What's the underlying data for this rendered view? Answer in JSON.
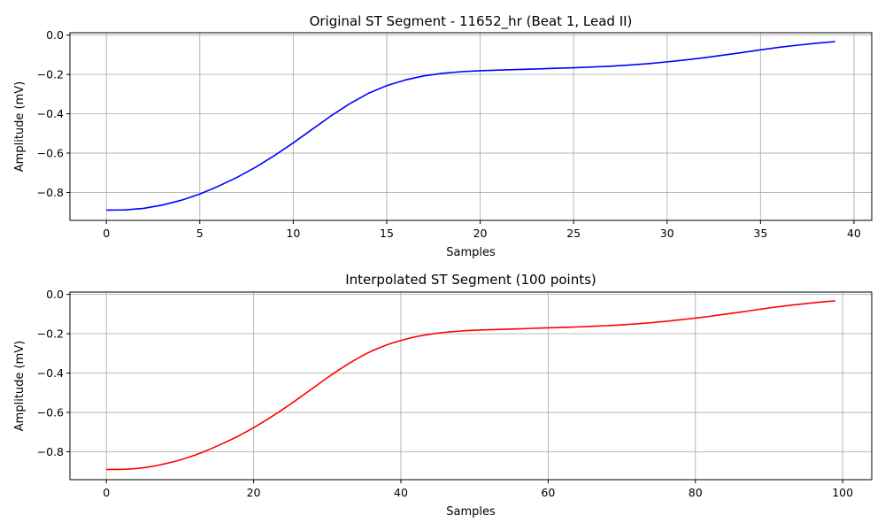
{
  "chart_data": [
    {
      "type": "line",
      "title": "Original ST Segment - 11652_hr (Beat 1, Lead II)",
      "xlabel": "Samples",
      "ylabel": "Amplitude (mV)",
      "xlim": [
        -1.95,
        40.95
      ],
      "ylim": [
        -0.942,
        0.012
      ],
      "xticks": [
        0,
        5,
        10,
        15,
        20,
        25,
        30,
        35,
        40
      ],
      "xtick_labels": [
        "0",
        "5",
        "10",
        "15",
        "20",
        "25",
        "30",
        "35",
        "40"
      ],
      "yticks": [
        0.0,
        -0.2,
        -0.4,
        -0.6,
        -0.8
      ],
      "ytick_labels": [
        "0.0",
        "−0.2",
        "−0.4",
        "−0.6",
        "−0.8"
      ],
      "grid": true,
      "color": "#0000ff",
      "series": [
        {
          "x": [
            0,
            1,
            2,
            3,
            4,
            5,
            6,
            7,
            8,
            9,
            10,
            11,
            12,
            13,
            14,
            15,
            16,
            17,
            18,
            19,
            20,
            21,
            22,
            23,
            24,
            25,
            26,
            27,
            28,
            29,
            30,
            31,
            32,
            33,
            34,
            35,
            36,
            37,
            38,
            39
          ],
          "values": [
            -0.89,
            -0.889,
            -0.881,
            -0.864,
            -0.84,
            -0.808,
            -0.768,
            -0.723,
            -0.671,
            -0.612,
            -0.548,
            -0.48,
            -0.412,
            -0.35,
            -0.297,
            -0.257,
            -0.228,
            -0.207,
            -0.194,
            -0.186,
            -0.181,
            -0.178,
            -0.175,
            -0.172,
            -0.169,
            -0.166,
            -0.162,
            -0.158,
            -0.152,
            -0.145,
            -0.136,
            -0.126,
            -0.115,
            -0.102,
            -0.089,
            -0.075,
            -0.062,
            -0.051,
            -0.041,
            -0.033
          ]
        }
      ]
    },
    {
      "type": "line",
      "title": "Interpolated ST Segment (100 points)",
      "xlabel": "Samples",
      "ylabel": "Amplitude (mV)",
      "xlim": [
        -4.95,
        103.95
      ],
      "ylim": [
        -0.942,
        0.012
      ],
      "xticks": [
        0,
        20,
        40,
        60,
        80,
        100
      ],
      "xtick_labels": [
        "0",
        "20",
        "40",
        "60",
        "80",
        "100"
      ],
      "yticks": [
        0.0,
        -0.2,
        -0.4,
        -0.6,
        -0.8
      ],
      "ytick_labels": [
        "0.0",
        "−0.2",
        "−0.4",
        "−0.6",
        "−0.8"
      ],
      "grid": true,
      "color": "#ff0000",
      "interpolated_from_points": 40,
      "x_max": 99
    }
  ]
}
